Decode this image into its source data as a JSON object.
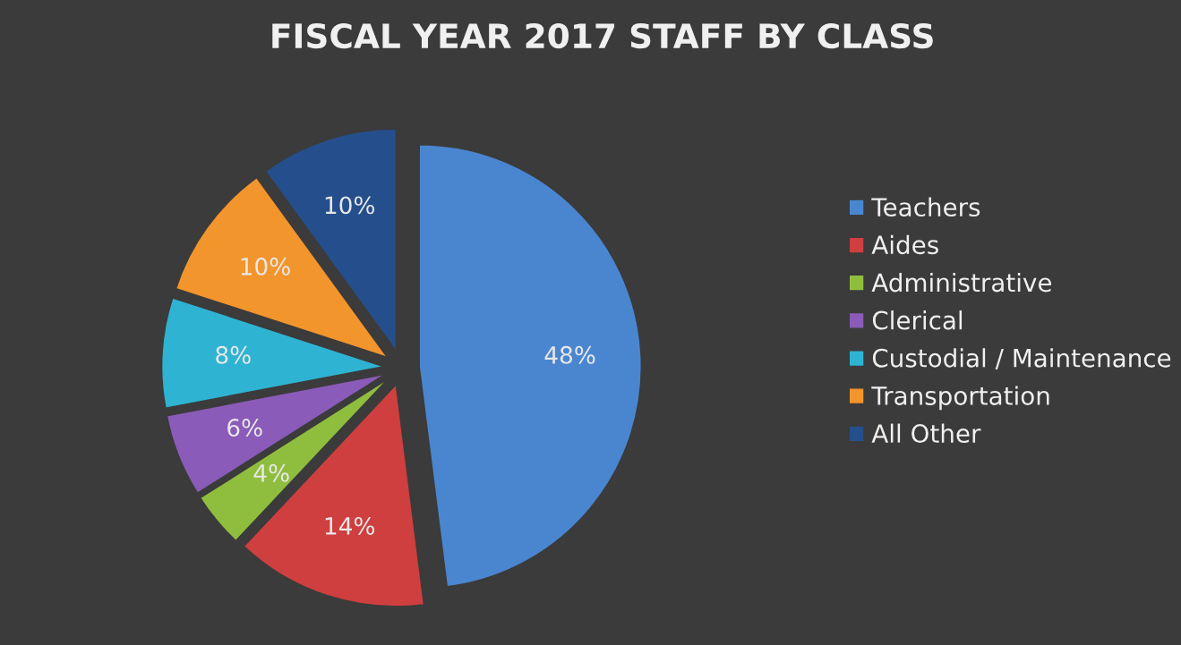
{
  "chart_data": {
    "type": "pie",
    "title": "FISCAL YEAR 2017 STAFF BY CLASS",
    "categories": [
      "Teachers",
      "Aides",
      "Administrative",
      "Clerical",
      "Custodial / Maintenance",
      "Transportation",
      "All Other"
    ],
    "values": [
      48,
      14,
      4,
      6,
      8,
      10,
      10
    ],
    "colors": [
      "#4a86d0",
      "#cf3f3f",
      "#8fbe3e",
      "#8a5bb8",
      "#2fb3d3",
      "#f2952c",
      "#254f8c"
    ],
    "value_labels": [
      "48%",
      "14%",
      "4%",
      "6%",
      "8%",
      "10%",
      "10%"
    ],
    "legend": "right"
  }
}
